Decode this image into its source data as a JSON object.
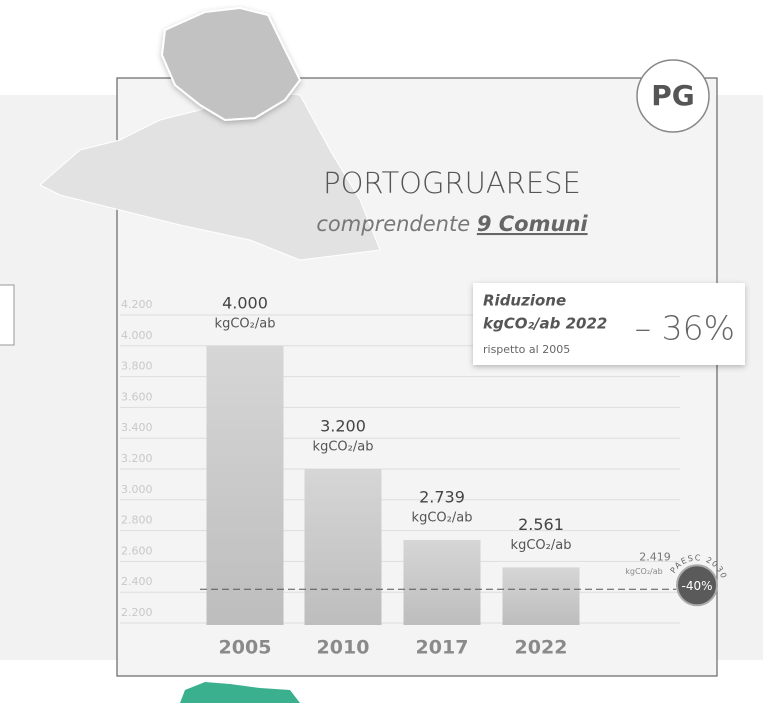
{
  "chart_data": {
    "type": "bar",
    "badge": "PG",
    "title": "PORTOGRUARESE",
    "subtitle": {
      "text": "comprendente",
      "emphasis": "9 Comuni"
    },
    "categories": [
      "2005",
      "2010",
      "2017",
      "2022"
    ],
    "values": [
      4000,
      3200,
      2739,
      2561
    ],
    "value_labels": [
      "4.000",
      "3.200",
      "2.739",
      "2.561"
    ],
    "unit": "kgCO₂/ab",
    "color": "#c8c8c8",
    "ylim": [
      2200,
      4200
    ],
    "yticks": [
      {
        "value": 2200,
        "label": "2.200"
      },
      {
        "value": 2400,
        "label": "2.400"
      },
      {
        "value": 2600,
        "label": "2.600"
      },
      {
        "value": 2800,
        "label": "2.800"
      },
      {
        "value": 3000,
        "label": "3.000"
      },
      {
        "value": 3200,
        "label": "3.200"
      },
      {
        "value": 3400,
        "label": "3.400"
      },
      {
        "value": 3600,
        "label": "3.600"
      },
      {
        "value": 3800,
        "label": "3.800"
      },
      {
        "value": 4000,
        "label": "4.000"
      },
      {
        "value": 4200,
        "label": "4.200"
      }
    ],
    "grid": true,
    "target": {
      "value": 2419,
      "value_label": "2.419",
      "unit": "kgCO₂/ab",
      "badge": "-40%",
      "label": "PAESC 2030"
    },
    "callout": {
      "line1": "Riduzione",
      "line2": "kgCO₂/ab 2022",
      "value": "– 36%",
      "note": "rispetto al 2005"
    }
  }
}
